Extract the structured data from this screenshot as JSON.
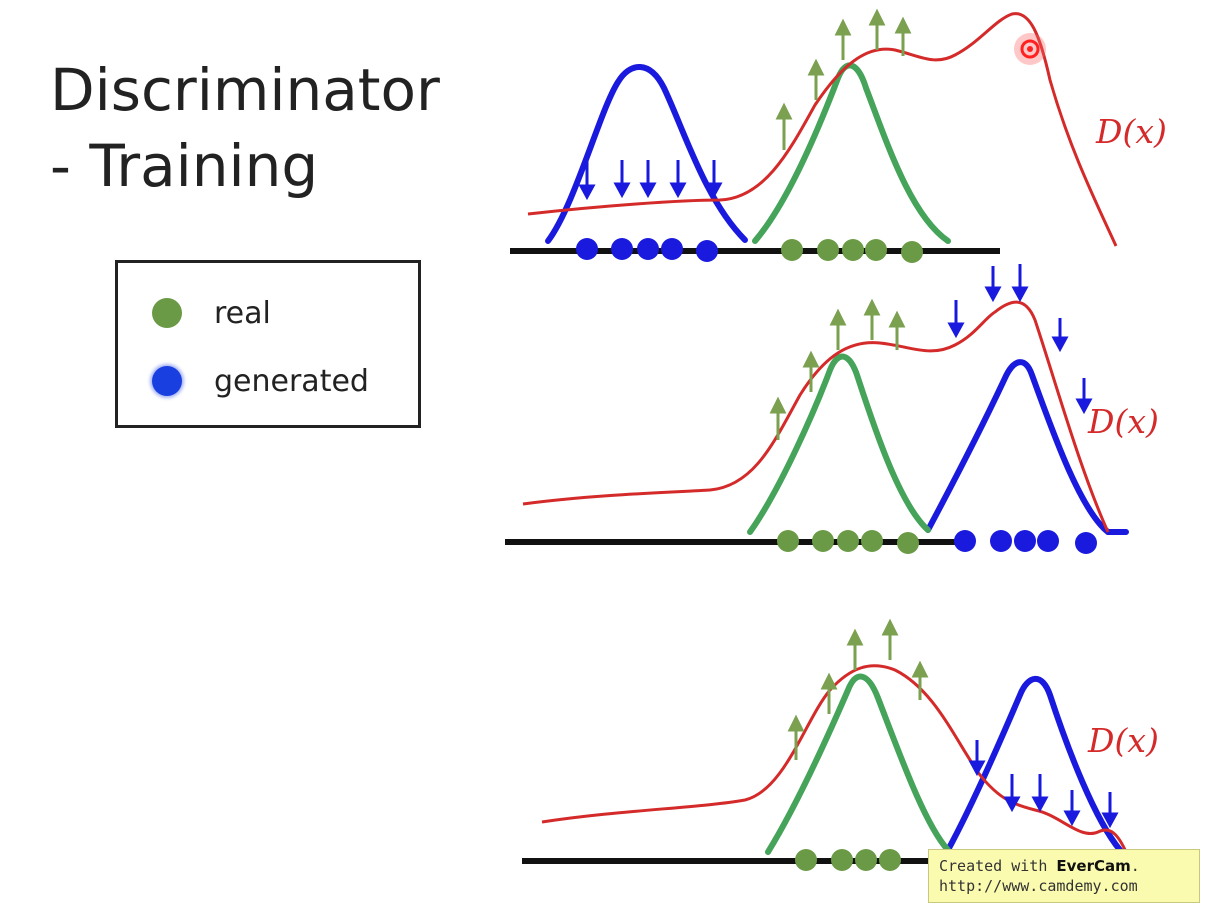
{
  "title": {
    "line1": "Discriminator",
    "line2": "- Training"
  },
  "legend": {
    "items": [
      {
        "label": "real",
        "color": "#6a9a45"
      },
      {
        "label": "generated",
        "color": "#1a3fe0"
      }
    ]
  },
  "panels": [
    {
      "curve_label": "D(x)"
    },
    {
      "curve_label": "D(x)"
    },
    {
      "curve_label": "D(x)"
    }
  ],
  "colors": {
    "real": "#6a9a45",
    "generated": "#1a1adf",
    "discriminator": "#d42a2a",
    "up_arrow": "#7aa050",
    "down_arrow": "#1a1adf",
    "baseline": "#111111"
  },
  "watermark": {
    "prefix": "Created with ",
    "brand": "EverCam",
    "suffix": ".",
    "url": "http://www.camdemy.com"
  }
}
